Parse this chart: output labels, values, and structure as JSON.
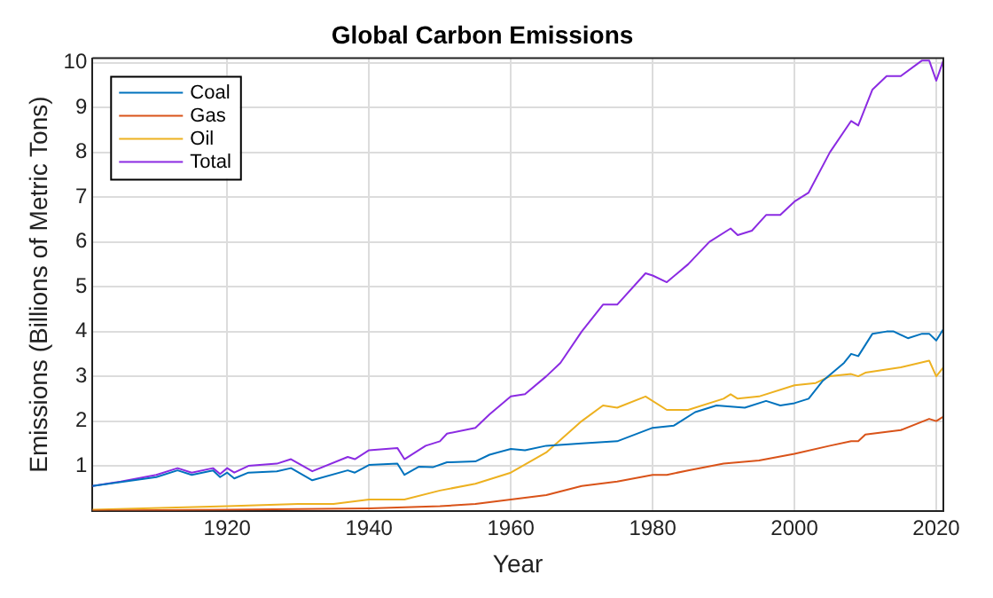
{
  "chart_data": {
    "type": "line",
    "title": "Global Carbon Emissions",
    "xlabel": "Year",
    "ylabel": "Emissions (Billions of Metric Tons)",
    "xlim": [
      1901,
      2021
    ],
    "xticks": [
      1920,
      1940,
      1960,
      1980,
      2000,
      2020
    ],
    "ylim": [
      0,
      10.1
    ],
    "yticks": [
      1,
      2,
      3,
      4,
      5,
      6,
      7,
      8,
      9,
      10
    ],
    "grid": true,
    "legend": "top left",
    "line_style": "solid",
    "marker": "none",
    "series": [
      {
        "name": "Coal",
        "color": "#0072bd",
        "x": [
          1901,
          1910,
          1913,
          1915,
          1918,
          1919,
          1920,
          1921,
          1923,
          1927,
          1929,
          1932,
          1937,
          1938,
          1940,
          1944,
          1945,
          1947,
          1949,
          1951,
          1955,
          1957,
          1960,
          1962,
          1965,
          1970,
          1975,
          1980,
          1983,
          1986,
          1989,
          1993,
          1996,
          1998,
          2000,
          2002,
          2004,
          2007,
          2008,
          2009,
          2011,
          2013,
          2014,
          2016,
          2018,
          2019,
          2020,
          2021
        ],
        "values": [
          0.55,
          0.75,
          0.9,
          0.8,
          0.9,
          0.75,
          0.85,
          0.72,
          0.85,
          0.88,
          0.95,
          0.68,
          0.9,
          0.85,
          1.02,
          1.05,
          0.8,
          0.98,
          0.97,
          1.08,
          1.1,
          1.25,
          1.38,
          1.35,
          1.45,
          1.5,
          1.55,
          1.85,
          1.9,
          2.2,
          2.35,
          2.3,
          2.45,
          2.35,
          2.4,
          2.5,
          2.9,
          3.3,
          3.5,
          3.45,
          3.95,
          4.0,
          4.0,
          3.85,
          3.95,
          3.95,
          3.8,
          4.05
        ]
      },
      {
        "name": "Gas",
        "color": "#d95319",
        "x": [
          1901,
          1920,
          1940,
          1950,
          1955,
          1960,
          1965,
          1970,
          1975,
          1980,
          1982,
          1985,
          1990,
          1995,
          2000,
          2005,
          2008,
          2009,
          2010,
          2015,
          2019,
          2020,
          2021
        ],
        "values": [
          0.0,
          0.02,
          0.05,
          0.1,
          0.15,
          0.25,
          0.35,
          0.55,
          0.65,
          0.8,
          0.8,
          0.9,
          1.05,
          1.12,
          1.27,
          1.45,
          1.55,
          1.55,
          1.7,
          1.8,
          2.05,
          2.0,
          2.1
        ]
      },
      {
        "name": "Oil",
        "color": "#edb120",
        "x": [
          1901,
          1920,
          1930,
          1935,
          1940,
          1945,
          1950,
          1955,
          1960,
          1965,
          1970,
          1973,
          1975,
          1979,
          1982,
          1985,
          1990,
          1991,
          1992,
          1995,
          2000,
          2003,
          2005,
          2008,
          2009,
          2010,
          2015,
          2019,
          2020,
          2021
        ],
        "values": [
          0.02,
          0.1,
          0.15,
          0.15,
          0.25,
          0.25,
          0.45,
          0.6,
          0.85,
          1.3,
          2.0,
          2.35,
          2.3,
          2.55,
          2.25,
          2.25,
          2.5,
          2.6,
          2.5,
          2.55,
          2.8,
          2.85,
          3.0,
          3.05,
          3.0,
          3.08,
          3.2,
          3.35,
          3.0,
          3.2
        ]
      },
      {
        "name": "Total",
        "color": "#8b2be2",
        "x": [
          1901,
          1905,
          1910,
          1913,
          1915,
          1918,
          1919,
          1920,
          1921,
          1923,
          1927,
          1929,
          1932,
          1937,
          1938,
          1940,
          1944,
          1945,
          1948,
          1950,
          1951,
          1955,
          1957,
          1960,
          1962,
          1965,
          1967,
          1970,
          1973,
          1975,
          1979,
          1980,
          1982,
          1985,
          1988,
          1991,
          1992,
          1994,
          1996,
          1998,
          2000,
          2002,
          2005,
          2008,
          2009,
          2011,
          2013,
          2015,
          2018,
          2019,
          2020,
          2021
        ],
        "values": [
          0.55,
          0.65,
          0.8,
          0.95,
          0.85,
          0.95,
          0.82,
          0.95,
          0.85,
          1.0,
          1.05,
          1.15,
          0.88,
          1.2,
          1.15,
          1.35,
          1.4,
          1.15,
          1.45,
          1.55,
          1.72,
          1.85,
          2.15,
          2.55,
          2.6,
          3.0,
          3.3,
          4.0,
          4.6,
          4.6,
          5.3,
          5.25,
          5.1,
          5.5,
          6.0,
          6.3,
          6.15,
          6.25,
          6.6,
          6.6,
          6.9,
          7.1,
          8.0,
          8.7,
          8.6,
          9.4,
          9.7,
          9.7,
          10.05,
          10.05,
          9.6,
          10.05
        ]
      }
    ]
  }
}
